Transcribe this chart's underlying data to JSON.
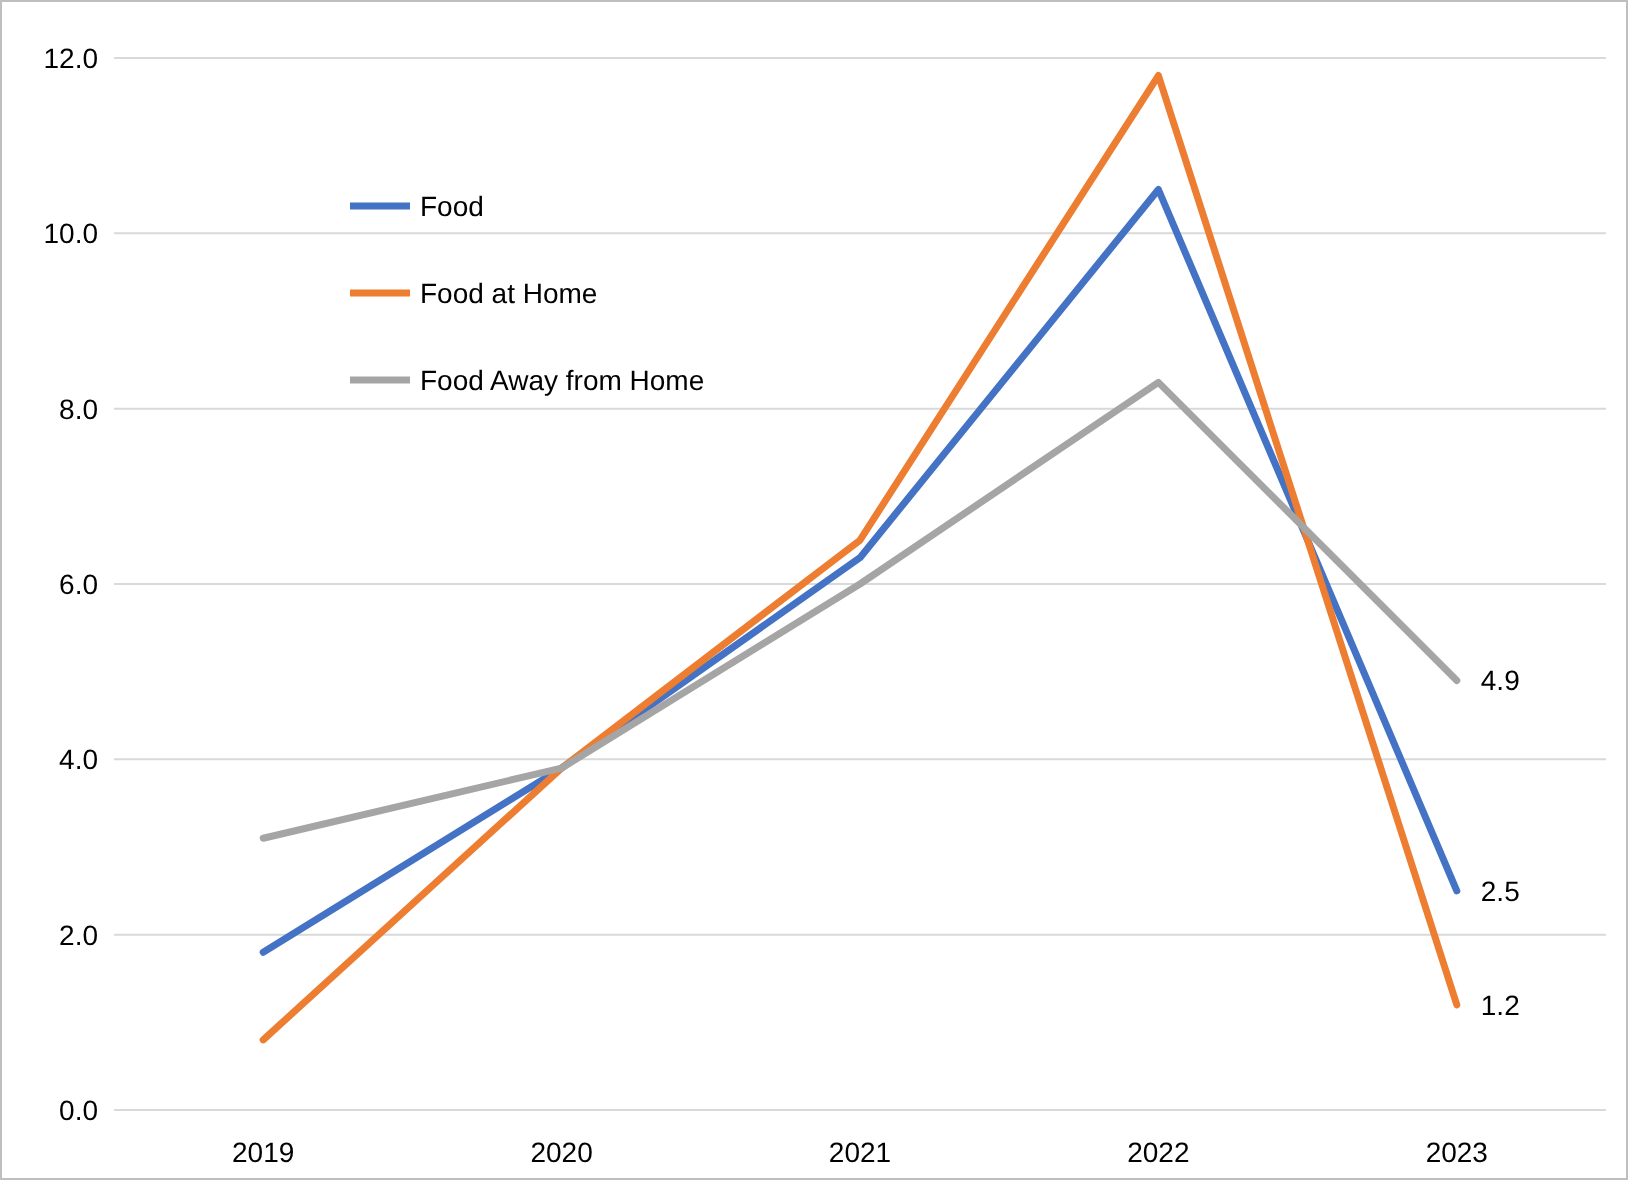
{
  "chart_data": {
    "type": "line",
    "categories": [
      "2019",
      "2020",
      "2021",
      "2022",
      "2023"
    ],
    "series": [
      {
        "name": "Food",
        "color": "#4472c4",
        "values": [
          1.8,
          3.9,
          6.3,
          10.5,
          2.5
        ],
        "value_labels": [
          null,
          null,
          null,
          null,
          "2.5"
        ]
      },
      {
        "name": "Food at Home",
        "color": "#ed7d31",
        "values": [
          0.8,
          3.9,
          6.5,
          11.8,
          1.2
        ],
        "value_labels": [
          null,
          null,
          null,
          null,
          "1.2"
        ]
      },
      {
        "name": "Food Away from Home",
        "color": "#a5a5a5",
        "values": [
          3.1,
          3.9,
          6.0,
          8.3,
          4.9
        ],
        "value_labels": [
          null,
          null,
          null,
          null,
          "4.9"
        ]
      }
    ],
    "ylim": [
      0,
      12
    ],
    "yticks": [
      {
        "value": 0,
        "label": "0.0"
      },
      {
        "value": 2,
        "label": "2.0"
      },
      {
        "value": 4,
        "label": "4.0"
      },
      {
        "value": 6,
        "label": "6.0"
      },
      {
        "value": 8,
        "label": "8.0"
      },
      {
        "value": 10,
        "label": "10.0"
      },
      {
        "value": 12,
        "label": "12.0"
      }
    ],
    "grid": "y",
    "legend": "top left",
    "marker": "none",
    "line_style": "solid"
  }
}
